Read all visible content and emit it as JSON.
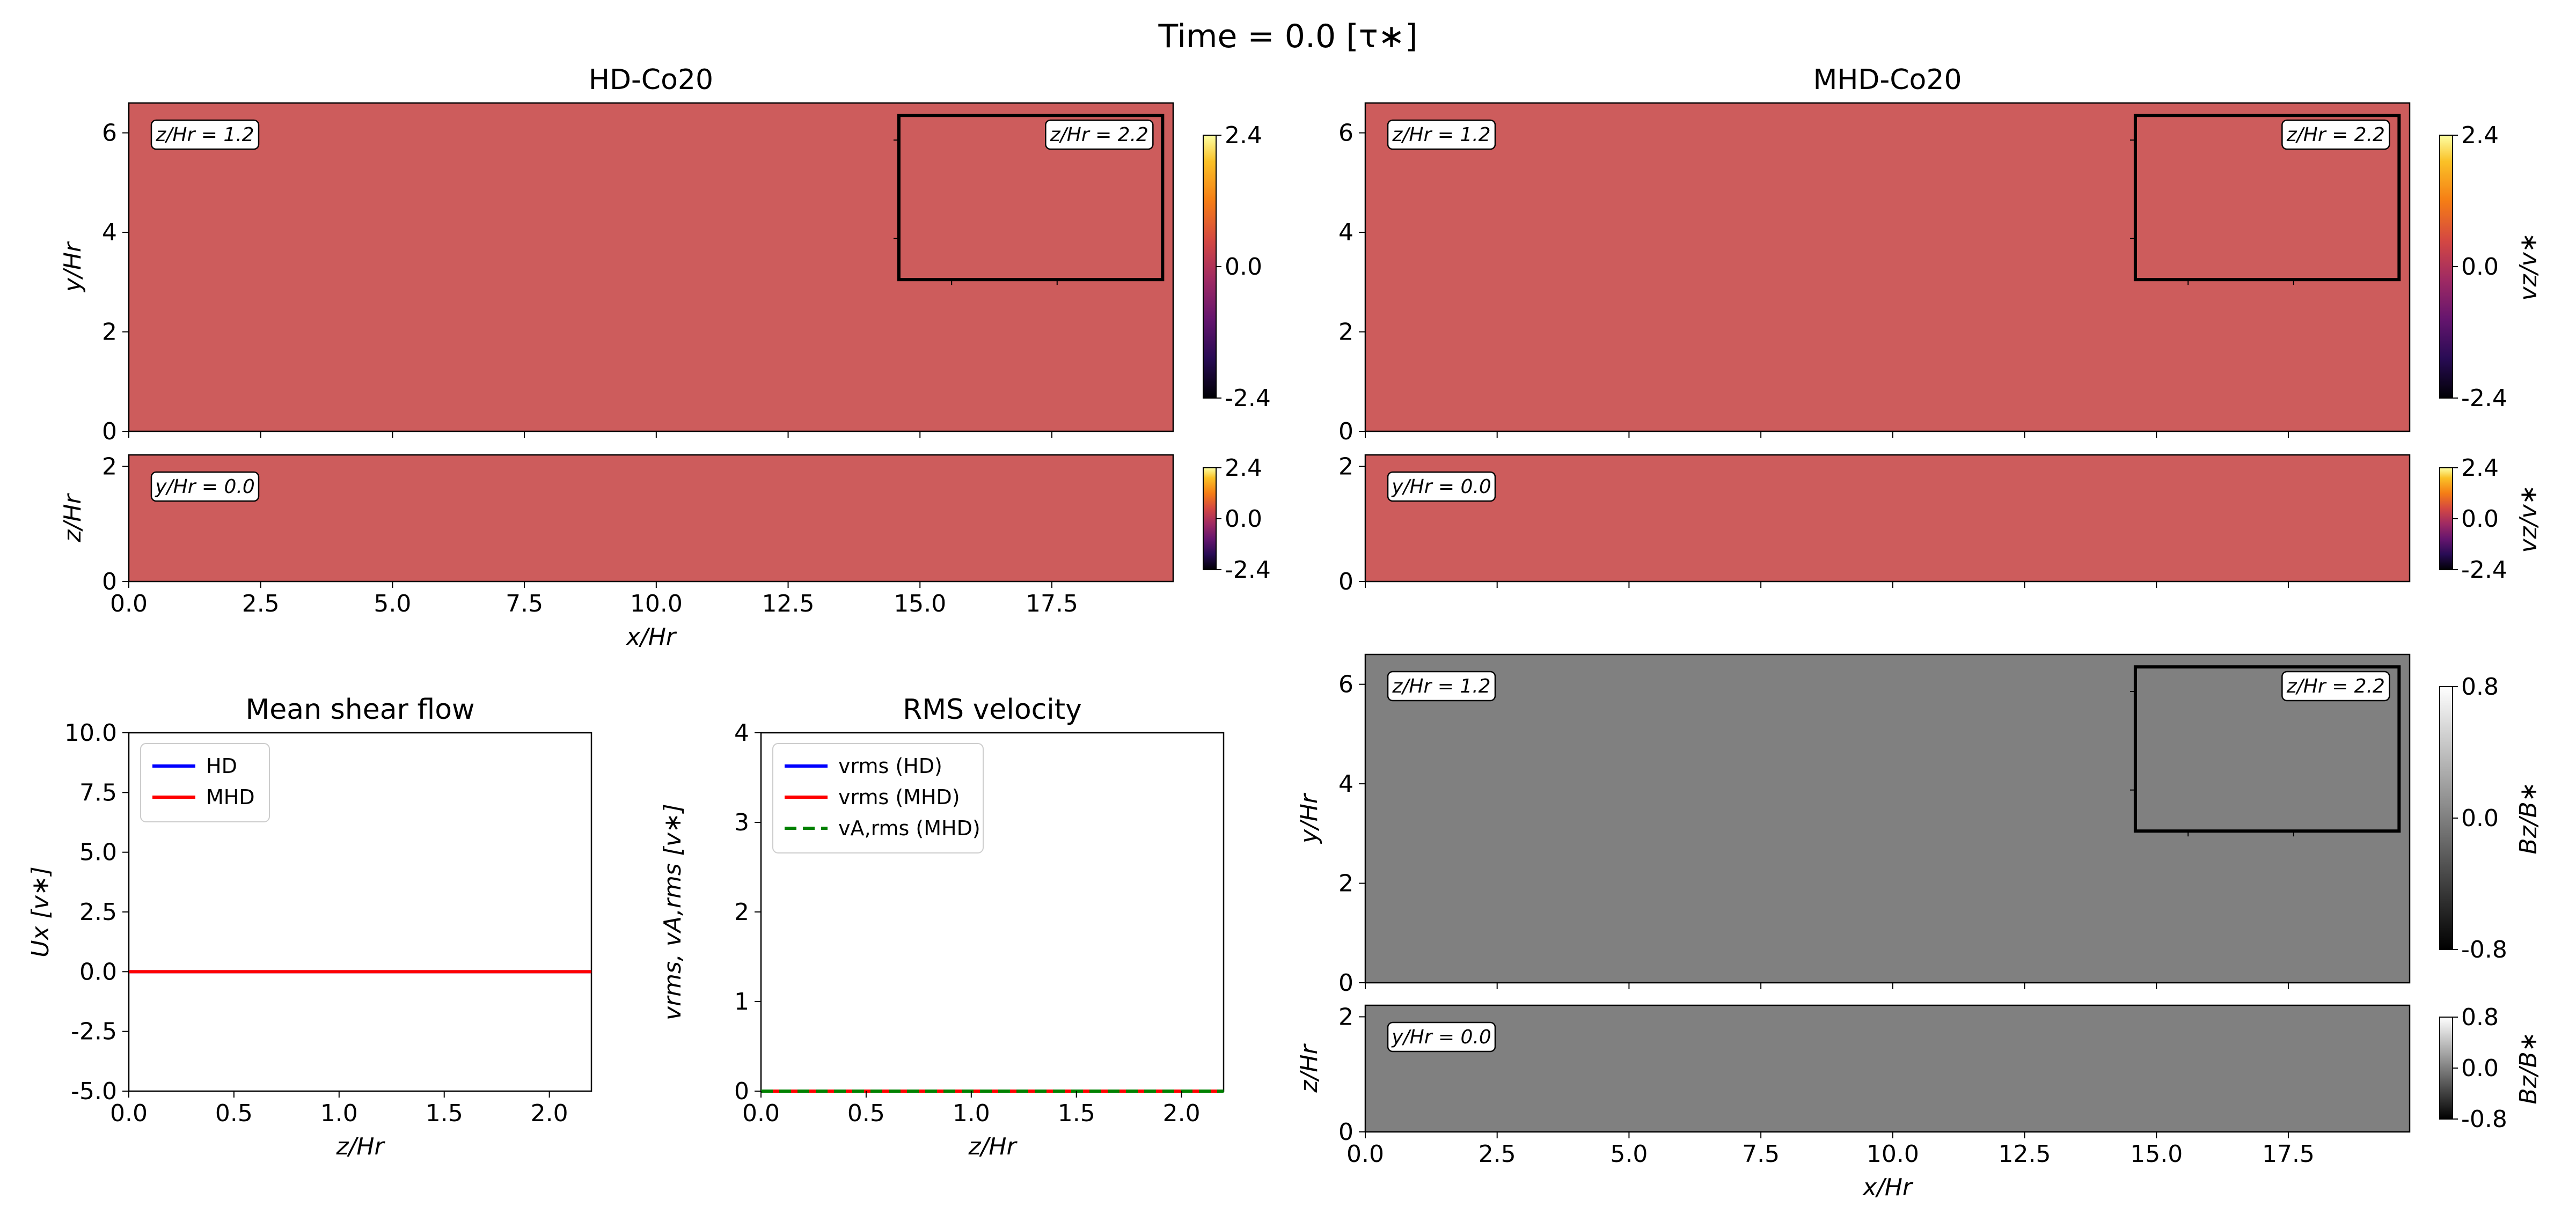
{
  "suptitle": "Time = 0.0   [τ∗]",
  "colors": {
    "vz_uniform": "#cd5c5c",
    "bz_uniform": "#808080",
    "hd_line": "#0000ff",
    "mhd_line": "#ff0000",
    "va_line": "#008000"
  },
  "chart_data": [
    {
      "id": "hd-top",
      "type": "heatmap",
      "title": "HD-Co20",
      "xlabel": "",
      "ylabel": "y/Hr",
      "xlim": [
        0,
        19.8
      ],
      "ylim": [
        0,
        6.6
      ],
      "xticks": [
        0.0,
        2.5,
        5.0,
        7.5,
        10.0,
        12.5,
        15.0,
        17.5
      ],
      "yticks": [
        0,
        2,
        4,
        6
      ],
      "field_value": 0.0,
      "annotations": [
        "z/Hr = 1.2",
        "z/Hr = 2.2"
      ],
      "inset_box": {
        "x": [
          14.6,
          19.6
        ],
        "y": [
          3.05,
          6.35
        ]
      },
      "colorbar": {
        "min": -2.4,
        "max": 2.4,
        "ticks": [
          "2.4",
          "0.0",
          "-2.4"
        ],
        "label": "",
        "cmap": "inferno"
      }
    },
    {
      "id": "hd-bottom",
      "type": "heatmap",
      "title": "",
      "xlabel": "x/Hr",
      "ylabel": "z/Hr",
      "xlim": [
        0,
        19.8
      ],
      "ylim": [
        0,
        2.2
      ],
      "xticks": [
        0.0,
        2.5,
        5.0,
        7.5,
        10.0,
        12.5,
        15.0,
        17.5
      ],
      "yticks": [
        0,
        2
      ],
      "field_value": 0.0,
      "annotations": [
        "y/Hr = 0.0"
      ],
      "colorbar": {
        "min": -2.4,
        "max": 2.4,
        "ticks": [
          "2.4",
          "0.0",
          "-2.4"
        ],
        "label": "",
        "cmap": "inferno"
      }
    },
    {
      "id": "mhd-top",
      "type": "heatmap",
      "title": "MHD-Co20",
      "xlabel": "",
      "ylabel": "",
      "xlim": [
        0,
        19.8
      ],
      "ylim": [
        0,
        6.6
      ],
      "xticks": [
        0.0,
        2.5,
        5.0,
        7.5,
        10.0,
        12.5,
        15.0,
        17.5
      ],
      "yticks": [
        0,
        2,
        4,
        6
      ],
      "field_value": 0.0,
      "annotations": [
        "z/Hr = 1.2",
        "z/Hr = 2.2"
      ],
      "inset_box": {
        "x": [
          14.6,
          19.6
        ],
        "y": [
          3.05,
          6.35
        ]
      },
      "colorbar": {
        "min": -2.4,
        "max": 2.4,
        "ticks": [
          "2.4",
          "0.0",
          "-2.4"
        ],
        "label": "vz/v∗",
        "cmap": "inferno"
      }
    },
    {
      "id": "mhd-mid",
      "type": "heatmap",
      "title": "",
      "xlabel": "",
      "ylabel": "",
      "xlim": [
        0,
        19.8
      ],
      "ylim": [
        0,
        2.2
      ],
      "xticks": [
        0.0,
        2.5,
        5.0,
        7.5,
        10.0,
        12.5,
        15.0,
        17.5
      ],
      "yticks": [
        0,
        2
      ],
      "field_value": 0.0,
      "annotations": [
        "y/Hr = 0.0"
      ],
      "colorbar": {
        "min": -2.4,
        "max": 2.4,
        "ticks": [
          "2.4",
          "0.0",
          "-2.4"
        ],
        "label": "vz/v∗",
        "cmap": "inferno"
      }
    },
    {
      "id": "mhd-bz-top",
      "type": "heatmap",
      "title": "",
      "xlabel": "",
      "ylabel": "y/Hr",
      "xlim": [
        0,
        19.8
      ],
      "ylim": [
        0,
        6.6
      ],
      "xticks": [
        0.0,
        2.5,
        5.0,
        7.5,
        10.0,
        12.5,
        15.0,
        17.5
      ],
      "yticks": [
        0,
        2,
        4,
        6
      ],
      "field_value": 0.0,
      "annotations": [
        "z/Hr = 1.2",
        "z/Hr = 2.2"
      ],
      "inset_box": {
        "x": [
          14.6,
          19.6
        ],
        "y": [
          3.05,
          6.35
        ]
      },
      "colorbar": {
        "min": -0.8,
        "max": 0.8,
        "ticks": [
          "0.8",
          "0.0",
          "-0.8"
        ],
        "label": "Bz/B∗",
        "cmap": "gray"
      }
    },
    {
      "id": "mhd-bz-bottom",
      "type": "heatmap",
      "title": "",
      "xlabel": "x/Hr",
      "ylabel": "z/Hr",
      "xlim": [
        0,
        19.8
      ],
      "ylim": [
        0,
        2.2
      ],
      "xticks": [
        0.0,
        2.5,
        5.0,
        7.5,
        10.0,
        12.5,
        15.0,
        17.5
      ],
      "yticks": [
        0,
        2
      ],
      "field_value": 0.0,
      "annotations": [
        "y/Hr = 0.0"
      ],
      "colorbar": {
        "min": -0.8,
        "max": 0.8,
        "ticks": [
          "0.8",
          "0.0",
          "-0.8"
        ],
        "label": "Bz/B∗",
        "cmap": "gray"
      }
    },
    {
      "id": "mean-shear",
      "type": "line",
      "title": "Mean shear flow",
      "xlabel": "z/Hr",
      "ylabel": "Ux [v∗]",
      "xlim": [
        0,
        2.2
      ],
      "ylim": [
        -5.0,
        10.0
      ],
      "xticks": [
        0.0,
        0.5,
        1.0,
        1.5,
        2.0
      ],
      "yticks": [
        10.0,
        7.5,
        5.0,
        2.5,
        0.0,
        -2.5,
        -5.0
      ],
      "legend": "top-left",
      "series": [
        {
          "name": "HD",
          "color": "#0000ff",
          "dash": "solid",
          "x": [
            0.0,
            2.2
          ],
          "y": [
            0.0,
            0.0
          ]
        },
        {
          "name": "MHD",
          "color": "#ff0000",
          "dash": "solid",
          "x": [
            0.0,
            2.2
          ],
          "y": [
            0.0,
            0.0
          ]
        }
      ]
    },
    {
      "id": "rms-velocity",
      "type": "line",
      "title": "RMS velocity",
      "xlabel": "z/Hr",
      "ylabel": "vrms, vA,rms [v∗]",
      "xlim": [
        0,
        2.2
      ],
      "ylim": [
        0,
        4
      ],
      "xticks": [
        0.0,
        0.5,
        1.0,
        1.5,
        2.0
      ],
      "yticks": [
        4,
        3,
        2,
        1,
        0
      ],
      "legend": "top-left",
      "series": [
        {
          "name": "vrms (HD)",
          "color": "#0000ff",
          "dash": "solid",
          "x": [
            0.0,
            2.2
          ],
          "y": [
            0.0,
            0.0
          ]
        },
        {
          "name": "vrms (MHD)",
          "color": "#ff0000",
          "dash": "solid",
          "x": [
            0.0,
            2.2
          ],
          "y": [
            0.0,
            0.0
          ]
        },
        {
          "name": "vA,rms (MHD)",
          "color": "#008000",
          "dash": "dashed",
          "x": [
            0.0,
            2.2
          ],
          "y": [
            0.0,
            0.0
          ]
        }
      ]
    }
  ]
}
